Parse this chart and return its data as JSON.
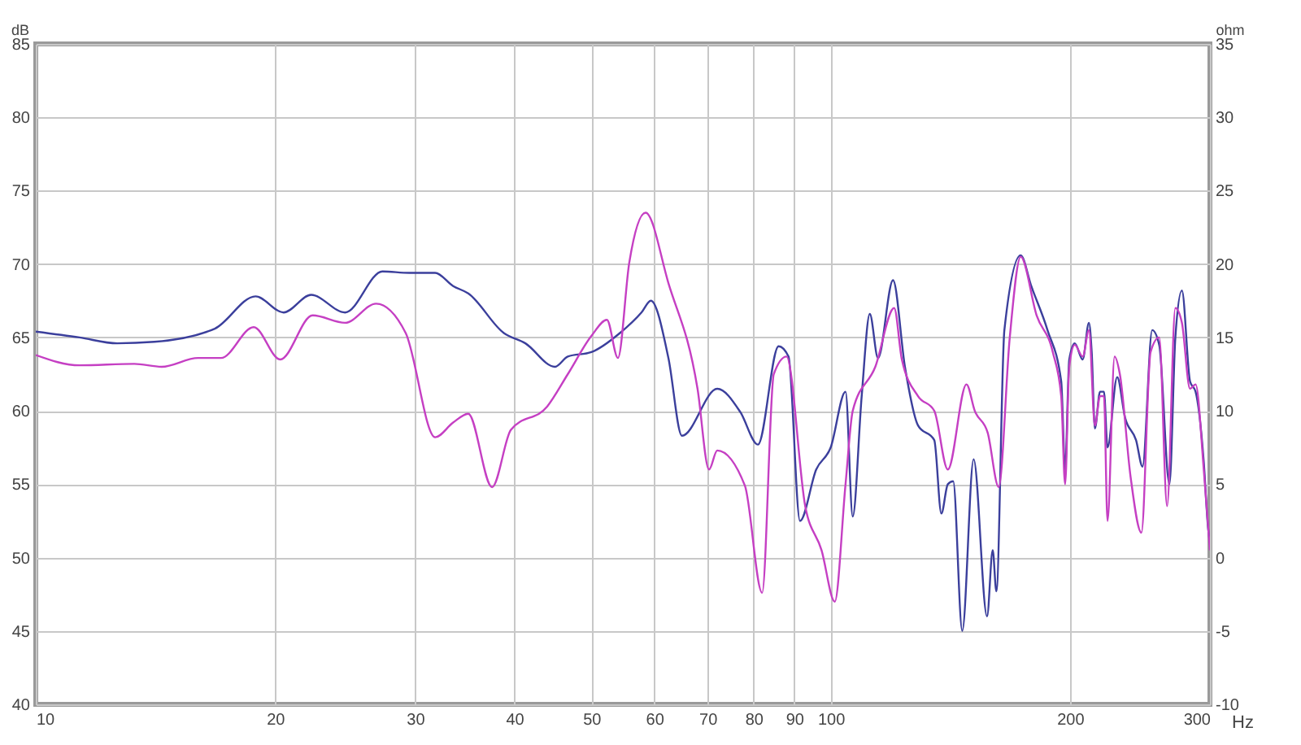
{
  "chart_data": {
    "type": "line",
    "xlabel": "Hz",
    "ylabel": "dB",
    "y2label": "ohm",
    "log": "x",
    "grid": true,
    "line_style": "solid",
    "marker": "none",
    "xlim": [
      10,
      300
    ],
    "xticks": [
      10,
      20,
      30,
      40,
      50,
      60,
      70,
      80,
      90,
      100,
      200,
      300
    ],
    "ylim": [
      40,
      85
    ],
    "yticks": [
      40,
      45,
      50,
      55,
      60,
      65,
      70,
      75,
      80,
      85
    ],
    "y2lim": [
      -10,
      35
    ],
    "y2ticks": [
      -10,
      -5,
      0,
      5,
      10,
      15,
      20,
      25,
      30,
      35
    ],
    "series": [
      {
        "color": "#3b3f9c",
        "x": [
          10,
          11.35,
          12.66,
          14.1,
          16.8,
          18.9,
          20.5,
          22.2,
          24.5,
          27.3,
          29.5,
          31.8,
          33.5,
          35,
          38.8,
          41.3,
          45,
          46.7,
          50,
          54.3,
          57.8,
          59.4,
          62.5,
          65,
          72,
          77,
          81,
          86,
          88.5,
          91.5,
          95.9,
          100,
          104.4,
          106.6,
          109.4,
          112,
          114.7,
          119.8,
          124,
          128.8,
          135,
          137.8,
          140.4,
          142.6,
          146.4,
          151.3,
          157.3,
          159.9,
          161.6,
          165.4,
          173.4,
          178.8,
          187.4,
          195,
          197.2,
          199.6,
          202.8,
          207.5,
          211.3,
          213,
          215,
          218.2,
          220.7,
          223,
          229.3,
          234.7,
          242.2,
          246.8,
          253.8,
          259,
          266.8,
          271.4,
          276.6,
          283.2,
          287.8,
          294.7,
          298.4,
          300
        ],
        "values": [
          65.4,
          65.0,
          64.6,
          64.7,
          65.6,
          67.8,
          66.7,
          67.9,
          66.7,
          69.5,
          69.4,
          69.4,
          68.5,
          68.0,
          65.3,
          64.6,
          63.0,
          63.7,
          64.0,
          65.3,
          66.7,
          67.5,
          63.6,
          58.3,
          61.5,
          59.9,
          57.7,
          64.4,
          63.7,
          52.5,
          56,
          57.5,
          61.3,
          52.8,
          61,
          66.6,
          63.6,
          68.9,
          63,
          59,
          58,
          53,
          55,
          55.2,
          45,
          56.7,
          46,
          50.5,
          47.7,
          65.5,
          70.6,
          68.5,
          65.5,
          62,
          56,
          63.5,
          64.6,
          63.5,
          66,
          64,
          58.8,
          61.3,
          61.3,
          57.5,
          62.3,
          59.5,
          58,
          56.2,
          65.5,
          64.5,
          55,
          65,
          68.2,
          62,
          61.3,
          56.5,
          52,
          51
        ]
      },
      {
        "color": "#c53fc3",
        "x": [
          10,
          11.35,
          13.3,
          14.4,
          16.0,
          17.1,
          18.8,
          20.3,
          22.3,
          24.5,
          26.8,
          29.2,
          31.8,
          33.5,
          35,
          37.5,
          39.6,
          44,
          46.7,
          50,
          52.3,
          54,
          55.8,
          58.5,
          62.5,
          68,
          70.3,
          72,
          78,
          82,
          84.8,
          88,
          92.9,
          97.4,
          101.2,
          104.4,
          106.6,
          113.8,
          120.2,
          122.9,
          128.8,
          135,
          140.4,
          148.2,
          151.8,
          157.6,
          162.7,
          168,
          173.4,
          181.6,
          190.3,
          195,
          197.2,
          199.6,
          202.8,
          207.5,
          211.3,
          215,
          218.2,
          220.7,
          223,
          227.6,
          231.1,
          238.4,
          246,
          252.6,
          259,
          265,
          271.4,
          276.6,
          283.2,
          287.8,
          294.7,
          300
        ],
        "values": [
          63.8,
          63.1,
          63.2,
          63.0,
          63.6,
          63.6,
          65.7,
          63.5,
          66.5,
          66.0,
          67.3,
          65.3,
          58.2,
          59.2,
          59.8,
          54.8,
          58.7,
          60.3,
          62.5,
          65.1,
          66.2,
          63.6,
          70.1,
          73.5,
          68.7,
          61.5,
          56,
          57.3,
          54.9,
          47.6,
          62.5,
          63.7,
          53.5,
          50.5,
          47,
          55,
          60,
          63,
          67,
          63.5,
          61,
          60,
          56,
          61.8,
          60,
          58.5,
          54.8,
          65,
          70.5,
          66.5,
          64,
          61,
          55,
          63,
          64.5,
          63.7,
          65.5,
          59,
          61,
          61,
          52.5,
          63.7,
          62.5,
          55.5,
          51.7,
          64,
          65,
          53.5,
          67,
          66,
          61.5,
          61.8,
          56,
          50.5
        ]
      }
    ]
  }
}
